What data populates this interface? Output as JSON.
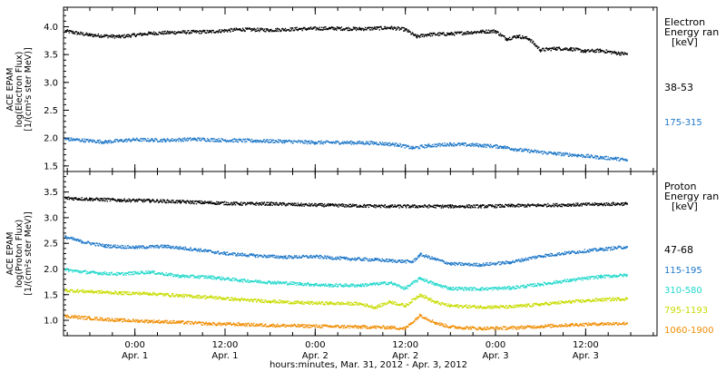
{
  "figure": {
    "xlabel": "hours:minutes, Mar. 31, 2012 - Apr. 3, 2012",
    "x_ticks": [
      {
        "time": "0:00",
        "date": "Apr. 1",
        "hour": 24
      },
      {
        "time": "12:00",
        "date": "Apr. 1",
        "hour": 36
      },
      {
        "time": "0:00",
        "date": "Apr. 2",
        "hour": 48
      },
      {
        "time": "12:00",
        "date": "Apr. 2",
        "hour": 60
      },
      {
        "time": "0:00",
        "date": "Apr. 3",
        "hour": 72
      },
      {
        "time": "12:00",
        "date": "Apr. 3",
        "hour": 84
      }
    ],
    "xlim_hours": [
      14.5,
      93.5
    ]
  },
  "chart_data": [
    {
      "type": "scatter",
      "panel": "electron",
      "ylabel_lines": [
        "ACE EPAM",
        "log(Electron Flux)",
        "[1/(cm²s ster MeV)]"
      ],
      "ylim": [
        1.4,
        4.35
      ],
      "y_ticks": [
        "1.5",
        "2.0",
        "2.5",
        "3.0",
        "3.5",
        "4.0"
      ],
      "legend": {
        "title_lines": [
          "Electron",
          "Energy ran",
          "[keV]"
        ],
        "entries": [
          {
            "label": "38-53",
            "color": "#000000"
          },
          {
            "label": "175-315",
            "color": "#1f78c8"
          }
        ]
      },
      "series": [
        {
          "name": "38-53",
          "color": "#000000",
          "points": [
            [
              14.8,
              3.92
            ],
            [
              18,
              3.85
            ],
            [
              22,
              3.82
            ],
            [
              26,
              3.88
            ],
            [
              30,
              3.9
            ],
            [
              34,
              3.91
            ],
            [
              38,
              3.95
            ],
            [
              42,
              3.94
            ],
            [
              46,
              3.96
            ],
            [
              50,
              3.97
            ],
            [
              54,
              3.96
            ],
            [
              58,
              3.98
            ],
            [
              60,
              3.95
            ],
            [
              61.5,
              3.82
            ],
            [
              63,
              3.86
            ],
            [
              66,
              3.87
            ],
            [
              70,
              3.91
            ],
            [
              72,
              3.92
            ],
            [
              73.5,
              3.78
            ],
            [
              75,
              3.83
            ],
            [
              76.5,
              3.78
            ],
            [
              78,
              3.58
            ],
            [
              80,
              3.61
            ],
            [
              82,
              3.6
            ],
            [
              84,
              3.56
            ],
            [
              86,
              3.57
            ],
            [
              88,
              3.53
            ],
            [
              89.5,
              3.51
            ]
          ]
        },
        {
          "name": "175-315",
          "color": "#1f78c8",
          "points": [
            [
              14.8,
              1.98
            ],
            [
              16,
              1.97
            ],
            [
              20,
              1.93
            ],
            [
              24,
              1.97
            ],
            [
              28,
              1.96
            ],
            [
              32,
              1.98
            ],
            [
              36,
              1.96
            ],
            [
              40,
              1.95
            ],
            [
              44,
              1.94
            ],
            [
              48,
              1.92
            ],
            [
              52,
              1.92
            ],
            [
              56,
              1.91
            ],
            [
              59,
              1.88
            ],
            [
              61,
              1.82
            ],
            [
              63,
              1.86
            ],
            [
              66,
              1.89
            ],
            [
              70,
              1.87
            ],
            [
              73,
              1.84
            ],
            [
              75,
              1.79
            ],
            [
              77,
              1.76
            ],
            [
              80,
              1.72
            ],
            [
              83,
              1.69
            ],
            [
              86,
              1.65
            ],
            [
              88,
              1.63
            ],
            [
              89.5,
              1.6
            ]
          ]
        }
      ]
    },
    {
      "type": "scatter",
      "panel": "proton",
      "ylabel_lines": [
        "ACE EPAM",
        "log(Proton Flux)",
        "[1/(cm²s ster MeV)]"
      ],
      "ylim": [
        0.7,
        3.9
      ],
      "y_ticks": [
        "1.0",
        "1.5",
        "2.0",
        "2.5",
        "3.0",
        "3.5"
      ],
      "legend": {
        "title_lines": [
          "Proton",
          "Energy ran",
          "[keV]"
        ],
        "entries": [
          {
            "label": "47-68",
            "color": "#000000"
          },
          {
            "label": "115-195",
            "color": "#1f78c8"
          },
          {
            "label": "310-580",
            "color": "#22d8cc"
          },
          {
            "label": "795-1193",
            "color": "#c8dc00"
          },
          {
            "label": "1060-1900",
            "color": "#f08c00"
          }
        ]
      },
      "series": [
        {
          "name": "47-68",
          "color": "#000000",
          "points": [
            [
              14.8,
              3.38
            ],
            [
              18,
              3.36
            ],
            [
              22,
              3.34
            ],
            [
              26,
              3.33
            ],
            [
              30,
              3.31
            ],
            [
              34,
              3.29
            ],
            [
              38,
              3.27
            ],
            [
              42,
              3.27
            ],
            [
              46,
              3.25
            ],
            [
              50,
              3.24
            ],
            [
              54,
              3.23
            ],
            [
              58,
              3.22
            ],
            [
              62,
              3.22
            ],
            [
              66,
              3.22
            ],
            [
              70,
              3.22
            ],
            [
              74,
              3.23
            ],
            [
              78,
              3.24
            ],
            [
              82,
              3.25
            ],
            [
              86,
              3.26
            ],
            [
              89.5,
              3.27
            ]
          ]
        },
        {
          "name": "115-195",
          "color": "#1f78c8",
          "points": [
            [
              14.8,
              2.62
            ],
            [
              17,
              2.53
            ],
            [
              20,
              2.45
            ],
            [
              24,
              2.42
            ],
            [
              28,
              2.44
            ],
            [
              32,
              2.38
            ],
            [
              36,
              2.3
            ],
            [
              40,
              2.26
            ],
            [
              44,
              2.23
            ],
            [
              48,
              2.24
            ],
            [
              52,
              2.2
            ],
            [
              56,
              2.18
            ],
            [
              58,
              2.16
            ],
            [
              61,
              2.14
            ],
            [
              62,
              2.28
            ],
            [
              64,
              2.19
            ],
            [
              66,
              2.1
            ],
            [
              70,
              2.08
            ],
            [
              74,
              2.13
            ],
            [
              78,
              2.25
            ],
            [
              82,
              2.32
            ],
            [
              86,
              2.38
            ],
            [
              89.5,
              2.43
            ]
          ]
        },
        {
          "name": "310-580",
          "color": "#22d8cc",
          "points": [
            [
              14.8,
              1.98
            ],
            [
              18,
              1.93
            ],
            [
              22,
              1.9
            ],
            [
              26,
              1.94
            ],
            [
              30,
              1.86
            ],
            [
              34,
              1.84
            ],
            [
              38,
              1.78
            ],
            [
              42,
              1.74
            ],
            [
              46,
              1.71
            ],
            [
              50,
              1.68
            ],
            [
              54,
              1.68
            ],
            [
              58,
              1.73
            ],
            [
              60,
              1.62
            ],
            [
              62,
              1.82
            ],
            [
              64,
              1.7
            ],
            [
              66,
              1.62
            ],
            [
              70,
              1.61
            ],
            [
              74,
              1.63
            ],
            [
              78,
              1.7
            ],
            [
              82,
              1.78
            ],
            [
              86,
              1.85
            ],
            [
              89.5,
              1.88
            ]
          ]
        },
        {
          "name": "795-1193",
          "color": "#c8dc00",
          "points": [
            [
              14.8,
              1.58
            ],
            [
              18,
              1.56
            ],
            [
              22,
              1.53
            ],
            [
              26,
              1.52
            ],
            [
              30,
              1.48
            ],
            [
              34,
              1.45
            ],
            [
              38,
              1.4
            ],
            [
              42,
              1.37
            ],
            [
              46,
              1.34
            ],
            [
              50,
              1.33
            ],
            [
              54,
              1.32
            ],
            [
              56,
              1.25
            ],
            [
              58,
              1.36
            ],
            [
              60,
              1.28
            ],
            [
              62,
              1.5
            ],
            [
              64,
              1.35
            ],
            [
              66,
              1.28
            ],
            [
              70,
              1.26
            ],
            [
              74,
              1.26
            ],
            [
              78,
              1.31
            ],
            [
              82,
              1.36
            ],
            [
              86,
              1.4
            ],
            [
              89.5,
              1.42
            ]
          ]
        },
        {
          "name": "1060-1900",
          "color": "#f08c00",
          "points": [
            [
              14.8,
              1.08
            ],
            [
              18,
              1.04
            ],
            [
              22,
              1.0
            ],
            [
              26,
              0.98
            ],
            [
              30,
              0.96
            ],
            [
              34,
              0.93
            ],
            [
              38,
              0.92
            ],
            [
              42,
              0.9
            ],
            [
              46,
              0.89
            ],
            [
              50,
              0.88
            ],
            [
              54,
              0.87
            ],
            [
              58,
              0.86
            ],
            [
              60,
              0.84
            ],
            [
              62,
              1.1
            ],
            [
              64,
              0.95
            ],
            [
              66,
              0.87
            ],
            [
              70,
              0.84
            ],
            [
              74,
              0.85
            ],
            [
              78,
              0.88
            ],
            [
              82,
              0.91
            ],
            [
              86,
              0.93
            ],
            [
              89.5,
              0.94
            ]
          ]
        }
      ]
    }
  ]
}
